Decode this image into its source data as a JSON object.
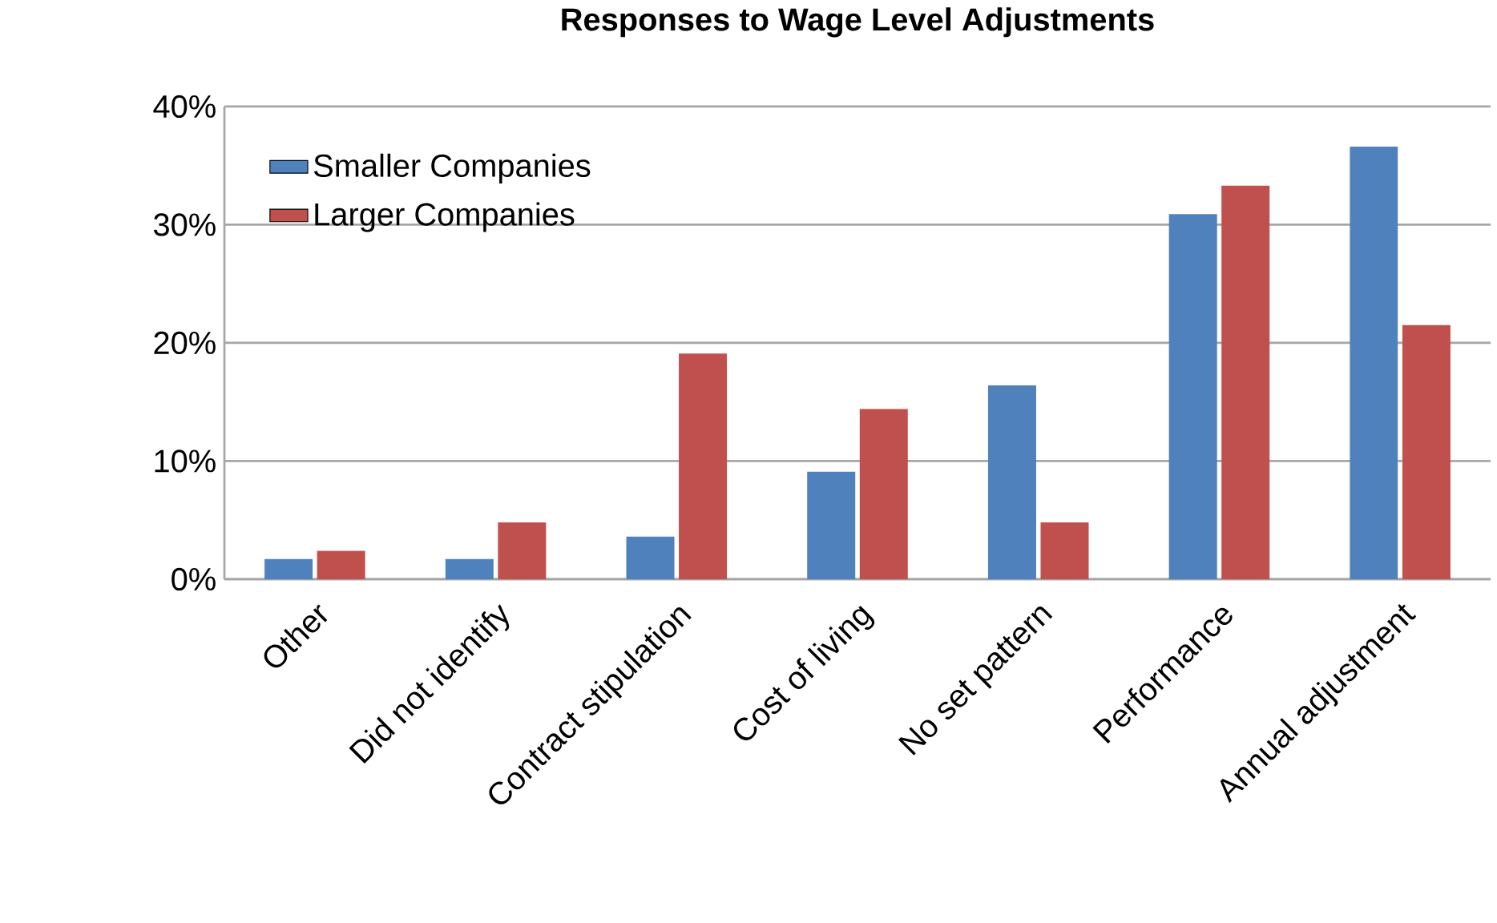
{
  "chart_data": {
    "type": "bar",
    "title": "Responses to Wage Level Adjustments",
    "categories": [
      "Other",
      "Did not identify",
      "Contract stipulation",
      "Cost of living",
      "No set pattern",
      "Performance",
      "Annual adjustment"
    ],
    "series": [
      {
        "name": "Smaller Companies",
        "color": "#4f81bd",
        "values": [
          1.7,
          1.7,
          3.6,
          9.1,
          16.4,
          30.9,
          36.6
        ]
      },
      {
        "name": "Larger Companies",
        "color": "#c0504d",
        "values": [
          2.4,
          4.8,
          19.1,
          14.4,
          4.8,
          33.3,
          21.5
        ]
      }
    ],
    "ylim": [
      0,
      40
    ],
    "yticks": [
      {
        "value": 0,
        "label": "0%"
      },
      {
        "value": 10,
        "label": "10%"
      },
      {
        "value": 20,
        "label": "20%"
      },
      {
        "value": 30,
        "label": "30%"
      },
      {
        "value": 40,
        "label": "40%"
      }
    ],
    "grid": "y",
    "legend": "top left"
  }
}
